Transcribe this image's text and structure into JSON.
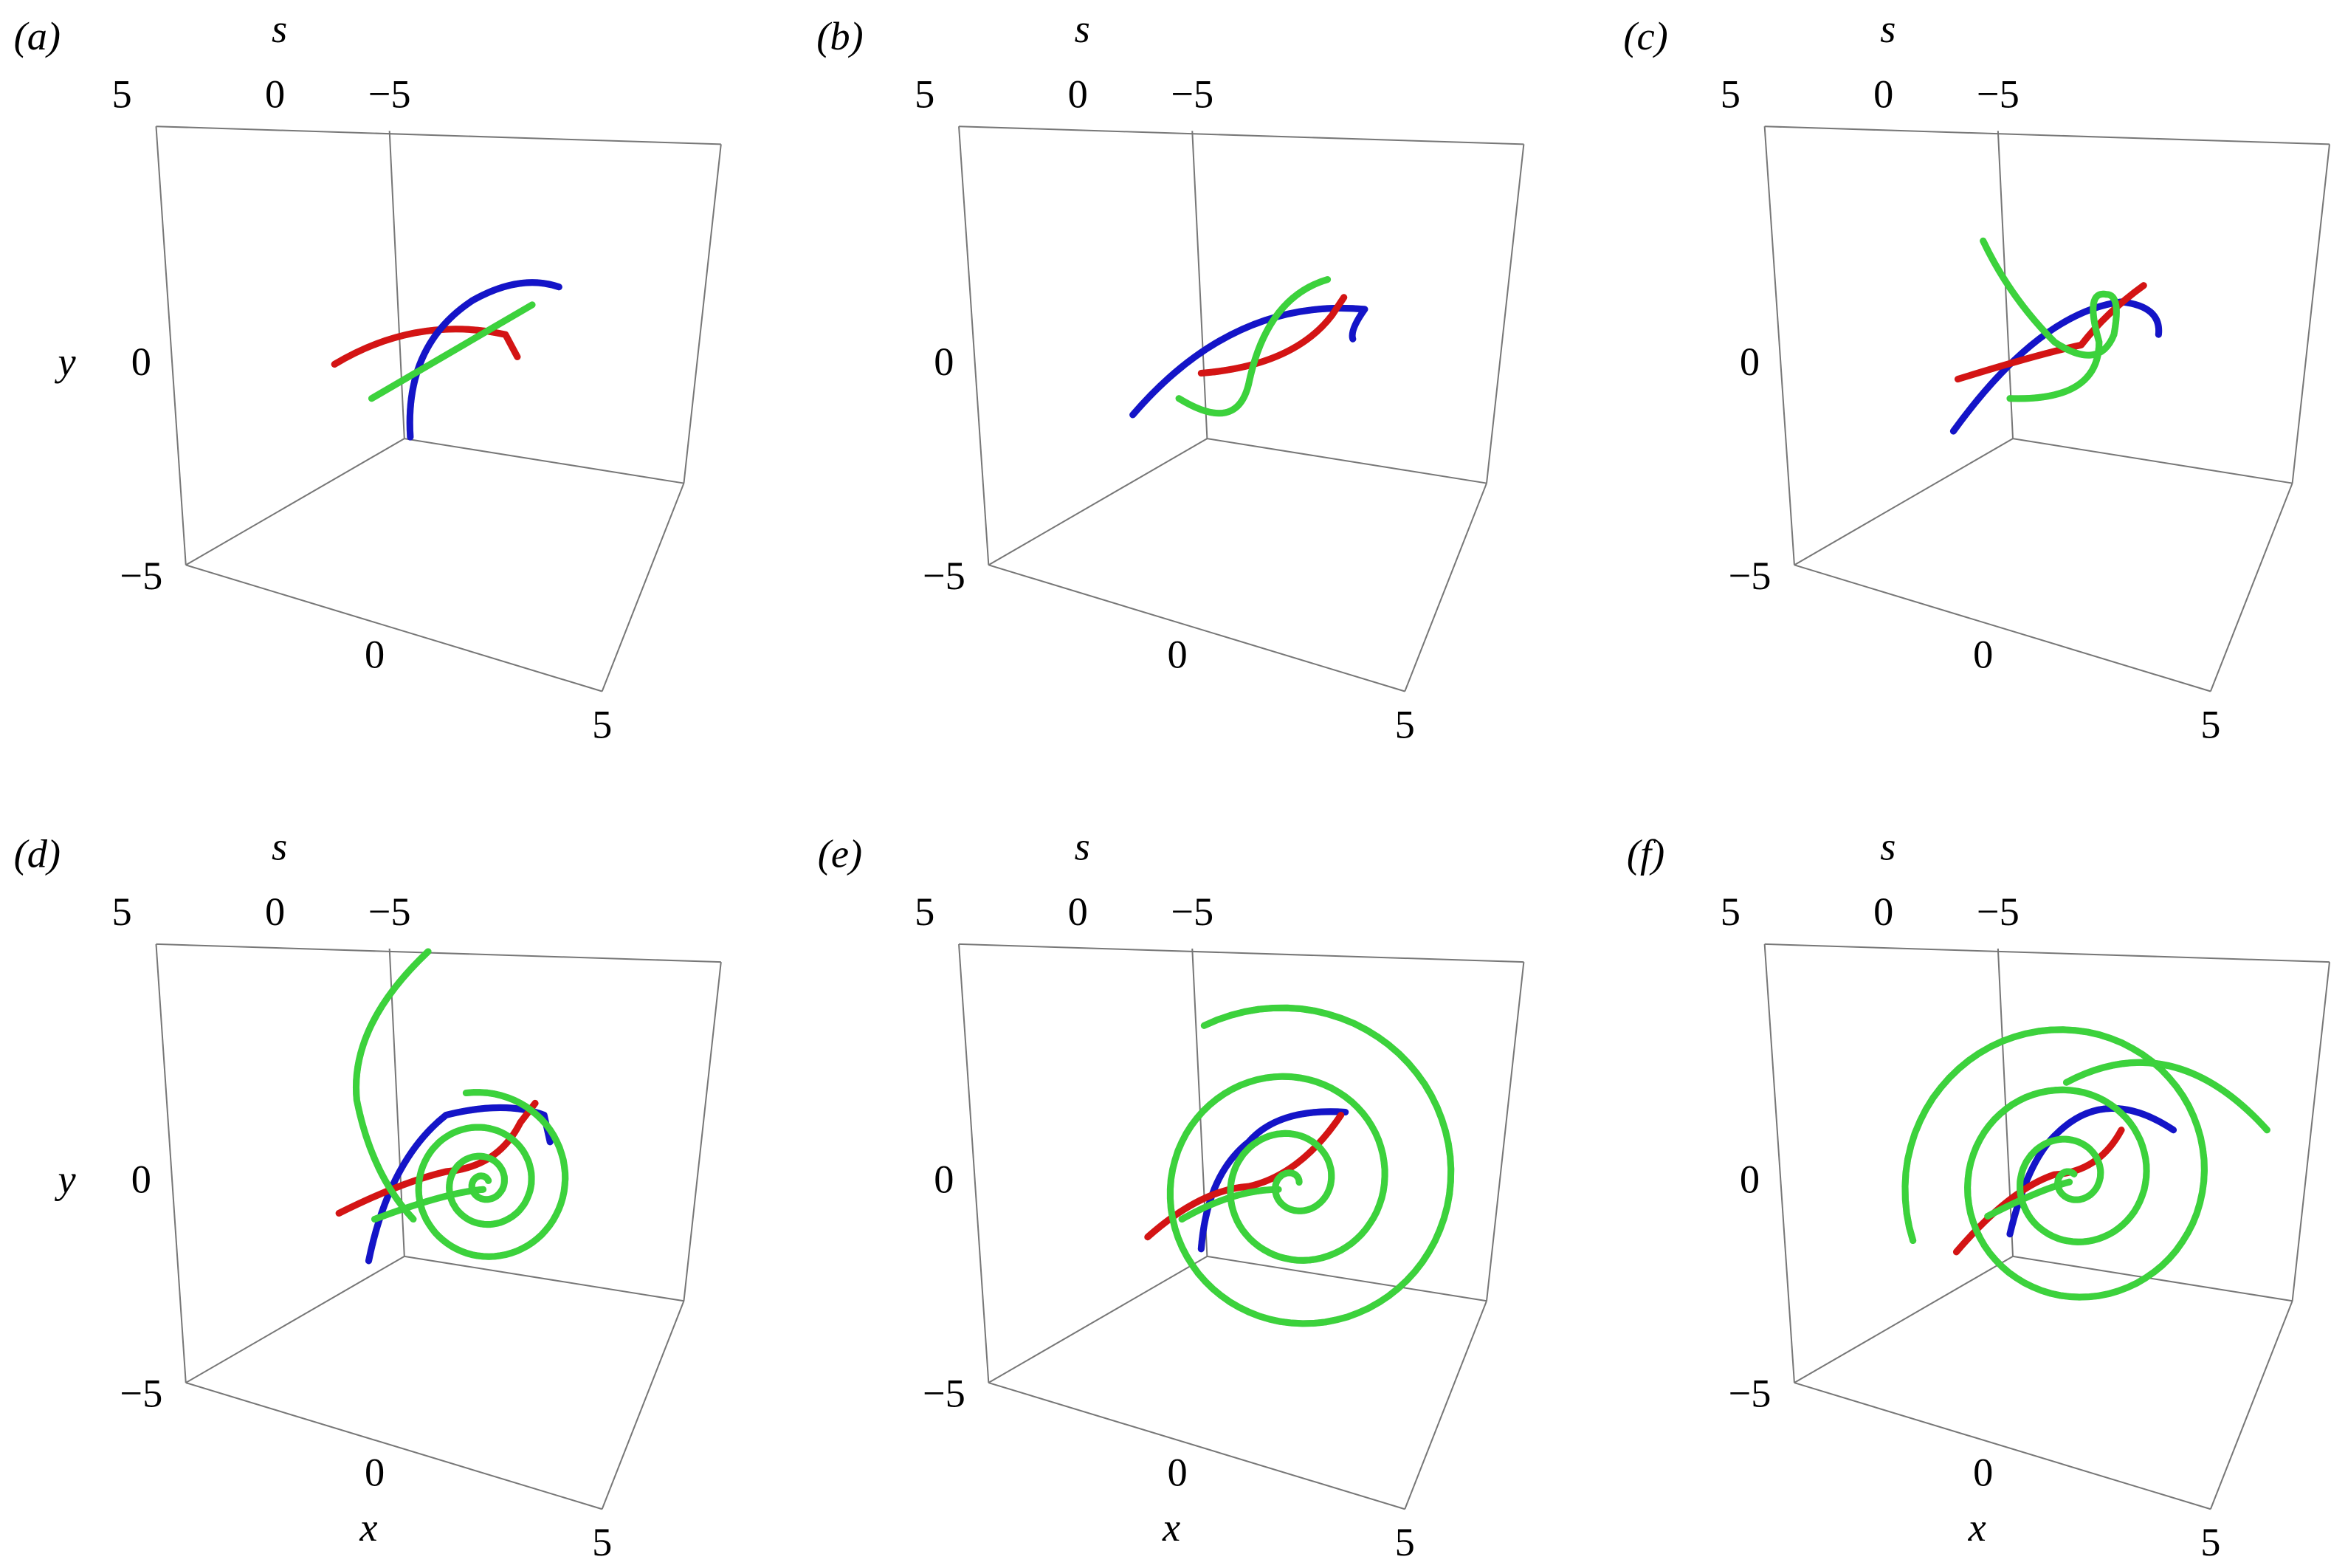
{
  "panels": [
    {
      "label": "(a)",
      "s_title": "s",
      "s_ticks": [
        "5",
        "0",
        "−5"
      ],
      "y_title": "y",
      "y_ticks": [
        "0",
        "−5"
      ],
      "x_ticks": [
        "0",
        "5"
      ]
    },
    {
      "label": "(b)",
      "s_title": "s",
      "s_ticks": [
        "5",
        "0",
        "−5"
      ],
      "y_ticks": [
        "0",
        "−5"
      ],
      "x_ticks": [
        "0",
        "5"
      ]
    },
    {
      "label": "(c)",
      "s_title": "s",
      "s_ticks": [
        "5",
        "0",
        "−5"
      ],
      "y_ticks": [
        "0",
        "−5"
      ],
      "x_ticks": [
        "0",
        "5"
      ]
    },
    {
      "label": "(d)",
      "s_title": "s",
      "s_ticks": [
        "5",
        "0",
        "−5"
      ],
      "y_title": "y",
      "y_ticks": [
        "0",
        "−5"
      ],
      "x_ticks": [
        "0",
        "5"
      ],
      "x_title": "x"
    },
    {
      "label": "(e)",
      "s_title": "s",
      "s_ticks": [
        "5",
        "0",
        "−5"
      ],
      "y_ticks": [
        "0",
        "−5"
      ],
      "x_ticks": [
        "0",
        "5"
      ],
      "x_title": "x"
    },
    {
      "label": "(f)",
      "s_title": "s",
      "s_ticks": [
        "5",
        "0",
        "−5"
      ],
      "y_ticks": [
        "0",
        "−5"
      ],
      "x_ticks": [
        "0",
        "5"
      ],
      "x_title": "x"
    }
  ]
}
